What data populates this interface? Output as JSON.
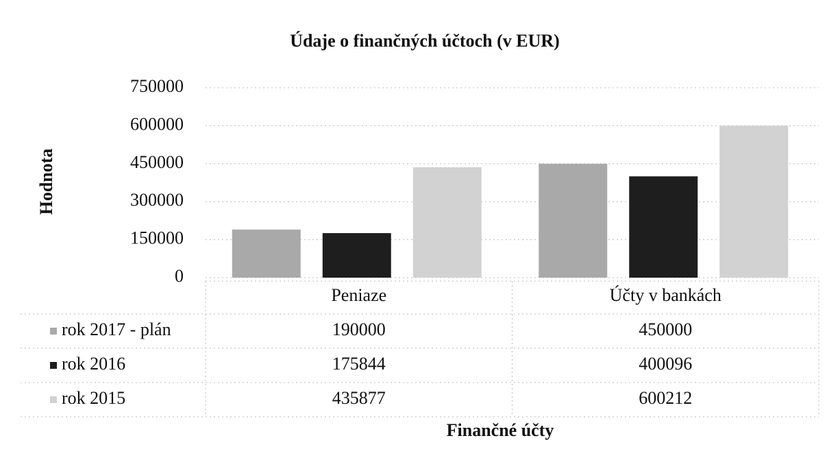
{
  "chart_data": {
    "type": "bar",
    "title": "Údaje o finančných účtoch (v EUR)",
    "y_label": "Hodnota",
    "x_label": "Finančné účty",
    "categories": [
      "Peniaze",
      "Účty v bankách"
    ],
    "series": [
      {
        "name": "rok 2017 - plán",
        "color": "#a9a9a9",
        "values": [
          190000,
          450000
        ]
      },
      {
        "name": "rok 2016",
        "color": "#1e1e1e",
        "values": [
          175844,
          400096
        ]
      },
      {
        "name": "rok 2015",
        "color": "#d2d2d2",
        "values": [
          435877,
          600212
        ]
      }
    ],
    "ylim": [
      0,
      750000
    ],
    "yticks": [
      0,
      150000,
      300000,
      450000,
      600000,
      750000
    ],
    "grid": true
  }
}
